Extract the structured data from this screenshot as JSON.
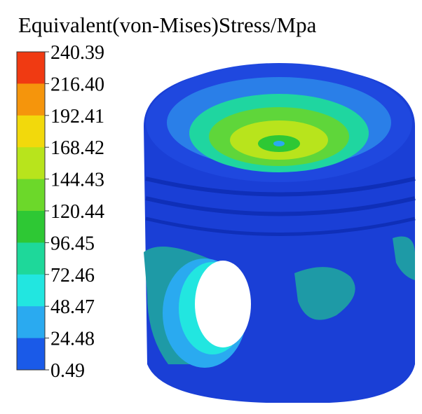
{
  "title": "Equivalent(von-Mises)Stress/Mpa",
  "legend": {
    "labels": [
      "240.39",
      "216.40",
      "192.41",
      "168.42",
      "144.43",
      "120.44",
      "96.45",
      "72.46",
      "48.47",
      "24.48",
      "0.49"
    ],
    "colors": [
      "#f03a12",
      "#f5950c",
      "#f2d90c",
      "#b8e41c",
      "#6cd82a",
      "#2ec834",
      "#1ed89a",
      "#22e6e0",
      "#2aaaf0",
      "#1a5ae8"
    ]
  }
}
